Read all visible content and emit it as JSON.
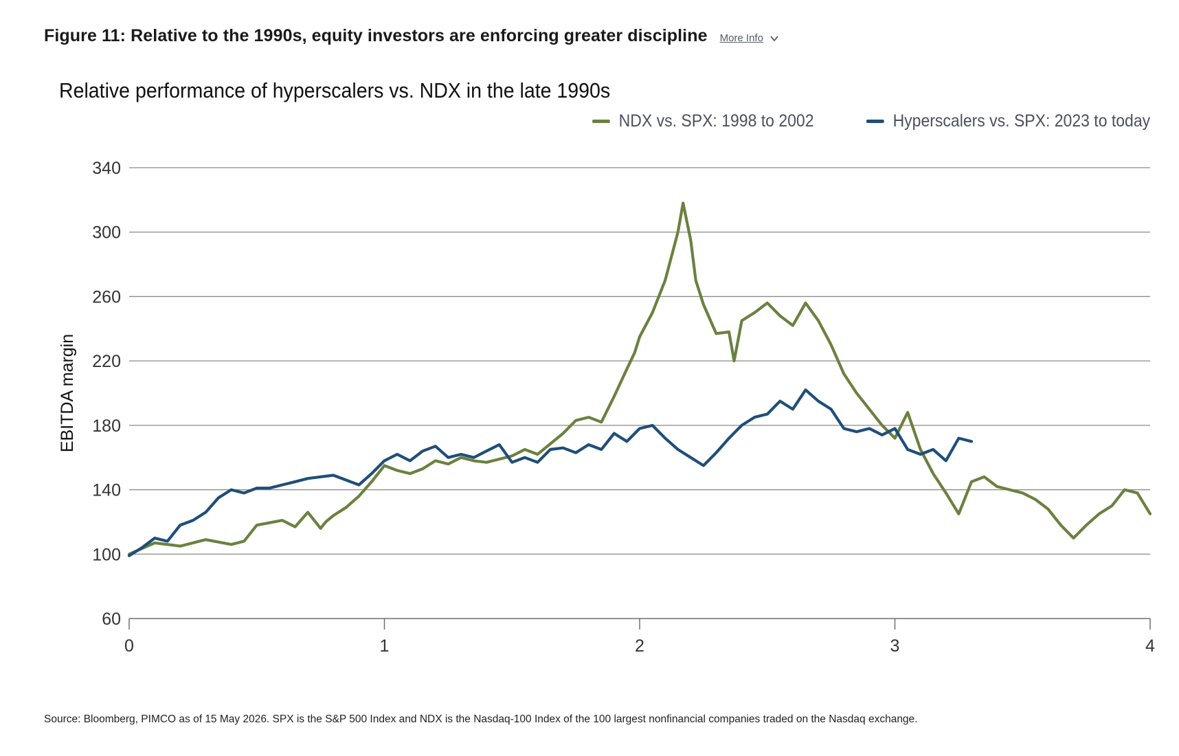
{
  "figure": {
    "title": "Figure 11: Relative to the 1990s, equity investors are enforcing greater discipline",
    "more_info_label": "More Info",
    "more_info_icon": "chevron-down-icon"
  },
  "source_note": "Source: Bloomberg, PIMCO as of 15 May 2026. SPX is the S&P 500 Index and NDX is the Nasdaq-100 Index of the 100 largest nonfinancial companies traded on the Nasdaq exchange.",
  "chart_data": {
    "type": "line",
    "title": "Relative performance of hyperscalers vs. NDX in the late 1990s",
    "xlabel": "",
    "ylabel": "EBITDA margin",
    "xlim": [
      0,
      4
    ],
    "ylim": [
      60,
      340
    ],
    "x_ticks": [
      0,
      1,
      2,
      3,
      4
    ],
    "y_ticks": [
      60,
      100,
      140,
      180,
      220,
      260,
      300,
      340
    ],
    "grid": "horizontal",
    "legend_position": "top-right",
    "series": [
      {
        "name": "NDX vs. SPX: 1998 to 2002",
        "color": "#6b8140",
        "x": [
          0,
          0.1,
          0.2,
          0.3,
          0.4,
          0.45,
          0.5,
          0.6,
          0.65,
          0.7,
          0.75,
          0.77,
          0.8,
          0.85,
          0.9,
          0.95,
          1.0,
          1.05,
          1.1,
          1.15,
          1.2,
          1.25,
          1.3,
          1.35,
          1.4,
          1.5,
          1.55,
          1.6,
          1.7,
          1.75,
          1.8,
          1.85,
          1.9,
          1.95,
          1.98,
          2.0,
          2.05,
          2.1,
          2.15,
          2.17,
          2.2,
          2.22,
          2.25,
          2.3,
          2.35,
          2.37,
          2.4,
          2.45,
          2.5,
          2.55,
          2.6,
          2.65,
          2.7,
          2.75,
          2.8,
          2.85,
          2.9,
          2.95,
          3.0,
          3.05,
          3.1,
          3.15,
          3.2,
          3.25,
          3.3,
          3.35,
          3.4,
          3.45,
          3.5,
          3.55,
          3.6,
          3.65,
          3.7,
          3.75,
          3.8,
          3.85,
          3.9,
          3.95,
          4.0
        ],
        "values": [
          100,
          107,
          105,
          109,
          106,
          108,
          118,
          121,
          117,
          126,
          116,
          120,
          124,
          129,
          136,
          145,
          155,
          152,
          150,
          153,
          158,
          156,
          160,
          158,
          157,
          161,
          165,
          162,
          175,
          183,
          185,
          182,
          198,
          215,
          225,
          235,
          250,
          270,
          300,
          318,
          295,
          270,
          255,
          237,
          238,
          220,
          245,
          250,
          256,
          248,
          242,
          256,
          245,
          230,
          212,
          200,
          190,
          180,
          172,
          188,
          165,
          150,
          138,
          125,
          145,
          148,
          142,
          140,
          138,
          134,
          128,
          118,
          110,
          118,
          125,
          130,
          140,
          138,
          125
        ]
      },
      {
        "name": "Hyperscalers vs. SPX: 2023 to today",
        "color": "#1f4e79",
        "x": [
          0,
          0.05,
          0.1,
          0.15,
          0.2,
          0.25,
          0.3,
          0.35,
          0.4,
          0.45,
          0.5,
          0.55,
          0.6,
          0.65,
          0.7,
          0.75,
          0.8,
          0.85,
          0.9,
          0.95,
          1.0,
          1.05,
          1.1,
          1.15,
          1.2,
          1.25,
          1.3,
          1.35,
          1.4,
          1.45,
          1.5,
          1.55,
          1.6,
          1.65,
          1.7,
          1.75,
          1.8,
          1.85,
          1.9,
          1.95,
          2.0,
          2.05,
          2.1,
          2.15,
          2.2,
          2.25,
          2.3,
          2.35,
          2.4,
          2.45,
          2.5,
          2.55,
          2.6,
          2.65,
          2.7,
          2.75,
          2.8,
          2.85,
          2.9,
          2.95,
          3.0,
          3.05,
          3.1,
          3.15,
          3.2,
          3.25,
          3.3
        ],
        "values": [
          99,
          104,
          110,
          108,
          118,
          121,
          126,
          135,
          140,
          138,
          141,
          141,
          143,
          145,
          147,
          148,
          149,
          146,
          143,
          150,
          158,
          162,
          158,
          164,
          167,
          160,
          162,
          160,
          164,
          168,
          157,
          160,
          157,
          165,
          166,
          163,
          168,
          165,
          175,
          170,
          178,
          180,
          172,
          165,
          160,
          155,
          163,
          172,
          180,
          185,
          187,
          195,
          190,
          202,
          195,
          190,
          178,
          176,
          178,
          174,
          178,
          165,
          162,
          165,
          158,
          172,
          170
        ]
      }
    ]
  }
}
